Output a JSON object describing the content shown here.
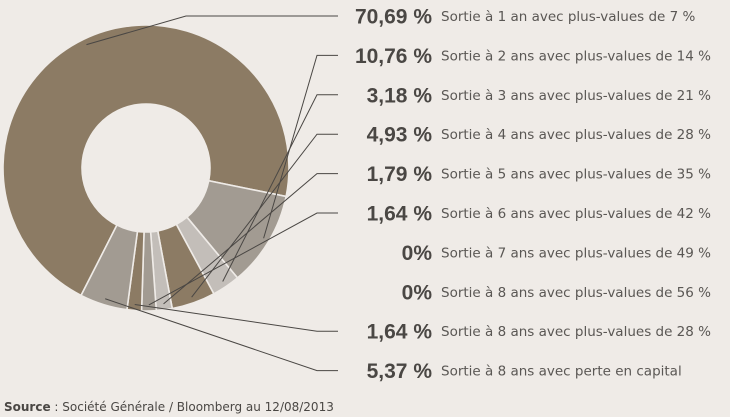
{
  "chart_data": {
    "type": "donut",
    "series": [
      {
        "label": "70,69 %",
        "value": 70.69,
        "name": "Sortie à 1 an avec plus-values de 7 %",
        "color": "#8c7b64"
      },
      {
        "label": "10,76 %",
        "value": 10.76,
        "name": "Sortie à 2 ans avec plus-values de 14 %",
        "color": "#a29b92"
      },
      {
        "label": "3,18 %",
        "value": 3.18,
        "name": "Sortie à 3 ans avec plus-values de 21 %",
        "color": "#c3beb9"
      },
      {
        "label": "4,93 %",
        "value": 4.93,
        "name": "Sortie à 4 ans avec plus-values de 28 %",
        "color": "#8c7b64"
      },
      {
        "label": "1,79 %",
        "value": 1.79,
        "name": "Sortie à 5 ans avec plus-values de 35 %",
        "color": "#c3beb9"
      },
      {
        "label": "1,64 %",
        "value": 1.64,
        "name": "Sortie à 6 ans avec plus-values de 42 %",
        "color": "#a29b92"
      },
      {
        "label": "0%",
        "value": 0,
        "name": "Sortie à 7 ans avec plus-values de 49 %",
        "color": "#8c7b64"
      },
      {
        "label": "0%",
        "value": 0,
        "name": "Sortie à 8 ans avec plus-values de 56 %",
        "color": "#8c7b64"
      },
      {
        "label": "1,64 %",
        "value": 1.64,
        "name": "Sortie à 8 ans avec plus-values de 28 %",
        "color": "#8c7b64"
      },
      {
        "label": "5,37 %",
        "value": 5.37,
        "name": "Sortie à 8 ans avec perte en capital",
        "color": "#a29b92"
      }
    ]
  },
  "source": {
    "label": "Source",
    "text": " : Société Générale / Bloomberg au 12/08/2013"
  }
}
